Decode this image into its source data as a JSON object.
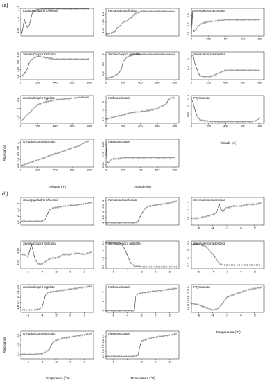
{
  "figure": {
    "sections": [
      {
        "id": "a",
        "label": "(a)"
      },
      {
        "id": "b",
        "label": "(b)"
      }
    ]
  },
  "chart_data": [
    {
      "type": "line",
      "section": "a",
      "title": "Cipangopaludina chinensis",
      "xlim": [
        0,
        850
      ],
      "ylim": [
        1.66,
        1.76
      ],
      "xticks": [],
      "yticks": [
        1.68,
        1.72,
        1.76
      ],
      "x": [
        0,
        10,
        20,
        40,
        60,
        80,
        100,
        130,
        150,
        180,
        200,
        260,
        300,
        400,
        500,
        600,
        700,
        800
      ],
      "y": [
        1.69,
        1.67,
        1.68,
        1.72,
        1.7,
        1.69,
        1.7,
        1.74,
        1.75,
        1.755,
        1.757,
        1.758,
        1.758,
        1.758,
        1.758,
        1.758,
        1.758,
        1.758
      ]
    },
    {
      "type": "line",
      "section": "a",
      "title": "Pomacea canaliculata",
      "xlim": [
        0,
        850
      ],
      "ylim": [
        1.49,
        1.63
      ],
      "xticks": [],
      "yticks": [
        1.52,
        1.56,
        1.6
      ],
      "x": [
        0,
        50,
        100,
        130,
        160,
        200,
        240,
        280,
        300,
        330,
        380,
        420,
        500,
        600,
        700,
        800
      ],
      "y": [
        1.5,
        1.505,
        1.51,
        1.53,
        1.54,
        1.56,
        1.565,
        1.58,
        1.585,
        1.6,
        1.61,
        1.615,
        1.615,
        1.615,
        1.615,
        1.615
      ]
    },
    {
      "type": "line",
      "section": "a",
      "title": "Semisulcospira coreana",
      "xlim": [
        0,
        850
      ],
      "ylim": [
        2.07,
        2.38
      ],
      "xticks": [
        0,
        200,
        400,
        600,
        800
      ],
      "yticks": [
        2.1,
        2.2,
        2.3
      ],
      "x": [
        0,
        10,
        20,
        30,
        40,
        60,
        80,
        100,
        150,
        200,
        250,
        300,
        350,
        400,
        500,
        600,
        700,
        800
      ],
      "y": [
        2.1,
        2.35,
        2.15,
        2.12,
        2.13,
        2.15,
        2.18,
        2.2,
        2.22,
        2.23,
        2.235,
        2.24,
        2.245,
        2.25,
        2.25,
        2.25,
        2.25,
        2.25
      ]
    },
    {
      "type": "line",
      "section": "a",
      "title": "Semisulcospira forticosta",
      "xlim": [
        0,
        850
      ],
      "ylim": [
        3.78,
        3.97
      ],
      "xticks": [
        0,
        200,
        400,
        600,
        800
      ],
      "yticks": [
        3.8,
        3.85,
        3.9,
        3.95
      ],
      "x": [
        0,
        20,
        40,
        60,
        80,
        100,
        150,
        200,
        250,
        300,
        350,
        400,
        500,
        600,
        700,
        800
      ],
      "y": [
        3.8,
        3.81,
        3.82,
        3.84,
        3.86,
        3.9,
        3.93,
        3.94,
        3.935,
        3.93,
        3.925,
        3.92,
        3.92,
        3.92,
        3.92,
        3.92
      ]
    },
    {
      "type": "line",
      "section": "a",
      "title": "Semisulcospira gottschei",
      "xlim": [
        0,
        850
      ],
      "ylim": [
        2.47,
        3.05
      ],
      "xticks": [
        0,
        200,
        400,
        600,
        800
      ],
      "yticks": [
        2.6,
        2.8,
        3.0
      ],
      "x": [
        0,
        50,
        100,
        150,
        180,
        200,
        250,
        300,
        350,
        400,
        500,
        600,
        700,
        800
      ],
      "y": [
        2.5,
        2.52,
        2.55,
        2.6,
        2.7,
        2.85,
        2.95,
        2.98,
        3.0,
        3.0,
        3.0,
        3.0,
        3.0,
        3.0
      ]
    },
    {
      "type": "line",
      "section": "a",
      "title": "Semisulcospira libertina",
      "xlim": [
        0,
        850
      ],
      "ylim": [
        -0.32,
        -0.03
      ],
      "xticks": [
        0,
        200,
        400,
        600,
        800
      ],
      "yticks": [
        -0.1,
        -0.2
      ],
      "x": [
        0,
        20,
        40,
        60,
        80,
        100,
        150,
        200,
        250,
        300,
        350,
        400,
        500,
        600,
        700,
        800
      ],
      "y": [
        -0.08,
        -0.06,
        -0.15,
        -0.2,
        -0.25,
        -0.28,
        -0.29,
        -0.29,
        -0.28,
        -0.26,
        -0.24,
        -0.22,
        -0.22,
        -0.22,
        -0.22,
        -0.22
      ]
    },
    {
      "type": "line",
      "section": "a",
      "title": "Semisulcospira tegulata",
      "xlim": [
        0,
        850
      ],
      "ylim": [
        1.83,
        2.15
      ],
      "xticks": [
        0,
        200,
        400,
        600,
        800
      ],
      "yticks": [
        1.9,
        2.0,
        2.1
      ],
      "x": [
        0,
        50,
        100,
        150,
        200,
        300,
        400,
        500,
        600,
        700,
        800
      ],
      "y": [
        1.85,
        1.9,
        1.95,
        2.0,
        2.05,
        2.08,
        2.1,
        2.11,
        2.12,
        2.13,
        2.13
      ]
    },
    {
      "type": "line",
      "section": "a",
      "title": "Radix auricularia",
      "xlim": [
        0,
        850
      ],
      "ylim": [
        7.0,
        8.3
      ],
      "xticks": [
        0,
        200,
        400,
        600,
        800
      ],
      "yticks": [
        7.2,
        7.6,
        8.0
      ],
      "x": [
        0,
        100,
        200,
        300,
        400,
        500,
        600,
        650,
        700,
        730,
        750,
        800
      ],
      "y": [
        7.2,
        7.3,
        7.4,
        7.5,
        7.55,
        7.6,
        7.7,
        7.8,
        7.9,
        8.1,
        8.2,
        8.2
      ]
    },
    {
      "type": "line",
      "section": "a",
      "title": "Physa acuta",
      "xlim": [
        0,
        850
      ],
      "ylim": [
        10.0,
        11.6
      ],
      "xticks": [
        0,
        200,
        400,
        600,
        800
      ],
      "yticks": [
        10.5,
        11,
        11.5
      ],
      "x": [
        0,
        20,
        40,
        60,
        80,
        100,
        150,
        200,
        300,
        400,
        500,
        600,
        700,
        750,
        800
      ],
      "y": [
        11.4,
        11.2,
        10.8,
        10.5,
        10.3,
        10.2,
        10.15,
        10.12,
        10.1,
        10.1,
        10.1,
        10.1,
        10.1,
        10.15,
        10.3
      ]
    },
    {
      "type": "line",
      "section": "a",
      "title": "Gyraulus convexiusculus",
      "xlim": [
        0,
        850
      ],
      "ylim": [
        2.28,
        2.75
      ],
      "xticks": [
        0,
        200,
        400,
        600,
        800
      ],
      "yticks": [
        2.3,
        2.4,
        2.5,
        2.6,
        2.7
      ],
      "x": [
        0,
        100,
        200,
        300,
        400,
        500,
        600,
        700,
        750,
        800
      ],
      "y": [
        2.3,
        2.35,
        2.4,
        2.45,
        2.5,
        2.55,
        2.6,
        2.65,
        2.7,
        2.72
      ]
    },
    {
      "type": "line",
      "section": "a",
      "title": "Hippeutis cantori",
      "xlim": [
        0,
        850
      ],
      "ylim": [
        2.03,
        2.3
      ],
      "xticks": [
        0,
        200,
        400,
        600,
        800
      ],
      "yticks": [
        2.05,
        2.15,
        2.25
      ],
      "x": [
        0,
        10,
        20,
        40,
        60,
        80,
        100,
        150,
        200,
        300,
        400,
        500,
        600,
        700,
        800
      ],
      "y": [
        2.28,
        2.1,
        2.07,
        2.08,
        2.1,
        2.11,
        2.11,
        2.11,
        2.12,
        2.12,
        2.12,
        2.12,
        2.12,
        2.12,
        2.12
      ]
    },
    {
      "type": "line",
      "section": "b",
      "title": "Cipangopaludina chinensis",
      "xlim": [
        -7,
        3.3
      ],
      "ylim": [
        1.3,
        3.5
      ],
      "xticks": [],
      "yticks": [
        1.5,
        2.0,
        2.5,
        3.0
      ],
      "x": [
        -7,
        -6,
        -5,
        -4.5,
        -4,
        -3.5,
        -3.2,
        -3,
        -2.5,
        -2,
        -1.5,
        -1,
        0,
        1,
        2,
        3
      ],
      "y": [
        1.6,
        1.6,
        1.6,
        1.6,
        1.6,
        1.8,
        2.2,
        2.5,
        2.65,
        2.7,
        2.75,
        2.8,
        2.85,
        2.9,
        3.0,
        3.1
      ]
    },
    {
      "type": "line",
      "section": "b",
      "title": "Pomacea canaliculata",
      "xlim": [
        -7,
        3.3
      ],
      "ylim": [
        0.8,
        3.3
      ],
      "xticks": [],
      "yticks": [
        1.0,
        1.5,
        2.0,
        2.5,
        3.0
      ],
      "x": [
        -7,
        -6,
        -5,
        -4,
        -3,
        -2.5,
        -2,
        -1.5,
        -1,
        0,
        1,
        2,
        3
      ],
      "y": [
        1.0,
        1.0,
        1.0,
        1.0,
        1.0,
        1.1,
        1.8,
        2.3,
        2.5,
        2.6,
        2.7,
        2.8,
        3.0
      ]
    },
    {
      "type": "line",
      "section": "b",
      "title": "Semisulcospira coreana",
      "xlim": [
        -7,
        3.3
      ],
      "ylim": [
        2.08,
        2.16
      ],
      "xticks": [
        -6,
        -4,
        -2,
        0,
        2
      ],
      "yticks": [
        2.1,
        2.12,
        2.14
      ],
      "x": [
        -7,
        -6,
        -5,
        -4,
        -3.5,
        -3,
        -2.8,
        -2.5,
        -2.2,
        -2,
        -1.5,
        -1,
        0,
        1,
        2,
        3
      ],
      "y": [
        2.1,
        2.1,
        2.105,
        2.11,
        2.115,
        2.14,
        2.125,
        2.12,
        2.13,
        2.13,
        2.132,
        2.135,
        2.135,
        2.14,
        2.14,
        2.145
      ]
    },
    {
      "type": "line",
      "section": "b",
      "title": "Semisulcospira forticosta",
      "xlim": [
        -7,
        3.3
      ],
      "ylim": [
        3.7,
        3.93
      ],
      "xticks": [
        -6,
        -4,
        -2,
        0,
        2
      ],
      "yticks": [
        3.75,
        3.85
      ],
      "x": [
        -7,
        -6.5,
        -6,
        -5.5,
        -5,
        -4.5,
        -4,
        -3.5,
        -3,
        -2.5,
        -2,
        -1.5,
        -1,
        0,
        1,
        2,
        3
      ],
      "y": [
        3.82,
        3.82,
        3.8,
        3.9,
        3.78,
        3.74,
        3.74,
        3.76,
        3.78,
        3.79,
        3.79,
        3.8,
        3.82,
        3.82,
        3.83,
        3.82,
        3.84
      ]
    },
    {
      "type": "line",
      "section": "b",
      "title": "Semisulcospira gottschei",
      "xlim": [
        -7,
        3.3
      ],
      "ylim": [
        2.55,
        3.25
      ],
      "xticks": [
        -6,
        -4,
        -2,
        0,
        2
      ],
      "yticks": [
        2.6,
        2.8,
        3.0,
        3.2
      ],
      "x": [
        -7,
        -6,
        -5,
        -4.5,
        -4,
        -3.5,
        -3,
        -2,
        -1,
        0,
        1,
        2,
        3
      ],
      "y": [
        3.2,
        3.2,
        3.2,
        3.1,
        2.9,
        2.7,
        2.62,
        2.6,
        2.6,
        2.6,
        2.6,
        2.6,
        2.6
      ]
    },
    {
      "type": "line",
      "section": "b",
      "title": "Semisulcospira libertina",
      "xlim": [
        -7,
        3.3
      ],
      "ylim": [
        -0.25,
        0.12
      ],
      "xticks": [
        -6,
        -4,
        -2,
        0,
        2
      ],
      "yticks": [
        -0.2,
        -0.1,
        0.0,
        0.1
      ],
      "x": [
        -7,
        -6,
        -5,
        -4.5,
        -4,
        -3.5,
        -3,
        -2.5,
        -2,
        -1.5,
        -1,
        0,
        1,
        2,
        3
      ],
      "y": [
        0.08,
        0.08,
        0.05,
        0.0,
        -0.05,
        -0.12,
        -0.18,
        -0.2,
        -0.2,
        -0.2,
        -0.2,
        -0.2,
        -0.2,
        -0.2,
        -0.2
      ]
    },
    {
      "type": "line",
      "section": "b",
      "title": "Semisulcospira tegulata",
      "xlim": [
        -7,
        3.3
      ],
      "ylim": [
        1.7,
        2.25
      ],
      "xticks": [
        -6,
        -4,
        -2,
        0,
        2
      ],
      "yticks": [
        1.8,
        1.9,
        2.0,
        2.1,
        2.2
      ],
      "x": [
        -7,
        -6,
        -5,
        -4.5,
        -4,
        -3.5,
        -3,
        -2,
        -1,
        0,
        1,
        2,
        3
      ],
      "y": [
        1.75,
        1.75,
        1.75,
        1.76,
        1.8,
        2.05,
        2.1,
        2.12,
        2.14,
        2.16,
        2.18,
        2.2,
        2.22
      ]
    },
    {
      "type": "line",
      "section": "b",
      "title": "Radix auricularia",
      "xlim": [
        -7,
        3.3
      ],
      "ylim": [
        6.8,
        9.8
      ],
      "xticks": [
        -6,
        -4,
        -2,
        0,
        2
      ],
      "yticks": [
        7.0,
        8.0,
        9.0
      ],
      "x": [
        -7,
        -6,
        -5,
        -4,
        -3,
        -2.8,
        -2.5,
        -2,
        -1,
        0,
        1,
        2,
        3
      ],
      "y": [
        7.0,
        7.0,
        7.0,
        7.0,
        7.0,
        8.5,
        8.8,
        8.9,
        9.0,
        9.1,
        9.2,
        9.3,
        9.4
      ]
    },
    {
      "type": "line",
      "section": "b",
      "title": "Physa acuta",
      "xlim": [
        -7,
        3.3
      ],
      "ylim": [
        10.4,
        11.5
      ],
      "xticks": [
        -6,
        -4,
        -2,
        0,
        2
      ],
      "yticks": [
        10.6,
        10.8,
        11.0,
        11.2,
        11.4
      ],
      "x": [
        -7,
        -6,
        -5,
        -4.5,
        -4,
        -3.5,
        -3,
        -2.5,
        -2,
        -1,
        0,
        1,
        2,
        3
      ],
      "y": [
        10.75,
        10.7,
        10.6,
        10.55,
        10.5,
        10.52,
        10.6,
        10.8,
        11.0,
        11.1,
        11.2,
        11.3,
        11.35,
        11.4
      ]
    },
    {
      "type": "line",
      "section": "b",
      "title": "Gyraulus convexiusculus",
      "xlim": [
        -7,
        3.3
      ],
      "ylim": [
        3.1,
        3.7
      ],
      "xticks": [
        -6,
        -4,
        -2,
        0,
        2
      ],
      "yticks": [
        3.2,
        3.4,
        3.6
      ],
      "x": [
        -7,
        -6,
        -5,
        -4,
        -3.5,
        -3,
        -2.5,
        -2,
        -1,
        0,
        1,
        2,
        3
      ],
      "y": [
        3.2,
        3.2,
        3.2,
        3.21,
        3.25,
        3.3,
        3.45,
        3.5,
        3.55,
        3.57,
        3.6,
        3.62,
        3.65
      ]
    },
    {
      "type": "line",
      "section": "b",
      "title": "Hippeutis cantori",
      "xlim": [
        -7,
        3.3
      ],
      "ylim": [
        2.45,
        3.0
      ],
      "xticks": [
        -6,
        -4,
        -2,
        0,
        2
      ],
      "yticks": [
        2.5,
        2.6,
        2.7,
        2.8,
        2.9
      ],
      "x": [
        -7,
        -6,
        -5,
        -4,
        -3,
        -2.5,
        -2.2,
        -2,
        -1,
        0,
        1,
        2,
        3
      ],
      "y": [
        2.5,
        2.5,
        2.5,
        2.5,
        2.5,
        2.52,
        2.7,
        2.8,
        2.85,
        2.88,
        2.9,
        2.92,
        2.95
      ]
    }
  ],
  "axis_text": {
    "altitude": "Altitude (m)",
    "temperature": "Temperature (°C)",
    "abundance": "Abundance"
  },
  "layout_hints": {
    "section_a_rows": 4,
    "section_b_rows": 4,
    "columns": 3
  }
}
